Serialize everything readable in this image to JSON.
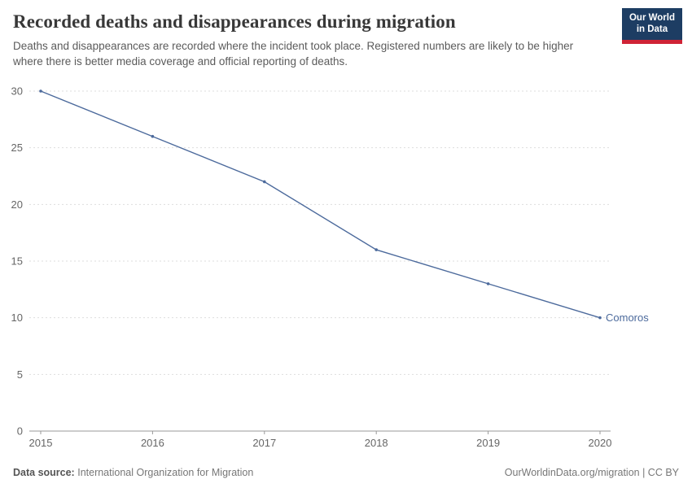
{
  "header": {
    "title": "Recorded deaths and disappearances during migration",
    "subtitle": "Deaths and disappearances are recorded where the incident took place. Registered numbers are likely to be higher where there is better media coverage and official reporting of deaths.",
    "logo": {
      "line1": "Our World",
      "line2": "in Data"
    }
  },
  "chart_data": {
    "type": "line",
    "x": [
      2015,
      2016,
      2017,
      2018,
      2019,
      2020
    ],
    "series": [
      {
        "name": "Comoros",
        "values": [
          30,
          26,
          22,
          16,
          13,
          10
        ],
        "color": "#4C6A9C"
      }
    ],
    "title": "Recorded deaths and disappearances during migration",
    "xlabel": "",
    "ylabel": "",
    "ylim": [
      0,
      30
    ],
    "yticks": [
      0,
      5,
      10,
      15,
      20,
      25,
      30
    ],
    "xticks": [
      2015,
      2016,
      2017,
      2018,
      2019,
      2020
    ],
    "grid": true,
    "grid_style": "dashed",
    "legend_position": "end-of-line"
  },
  "colors": {
    "line": "#4C6A9C",
    "grid": "#dddddd",
    "axis": "#999999",
    "tick_label": "#666666"
  },
  "footer": {
    "source_label": "Data source:",
    "source_value": "International Organization for Migration",
    "right_text": "OurWorldinData.org/migration | CC BY"
  }
}
